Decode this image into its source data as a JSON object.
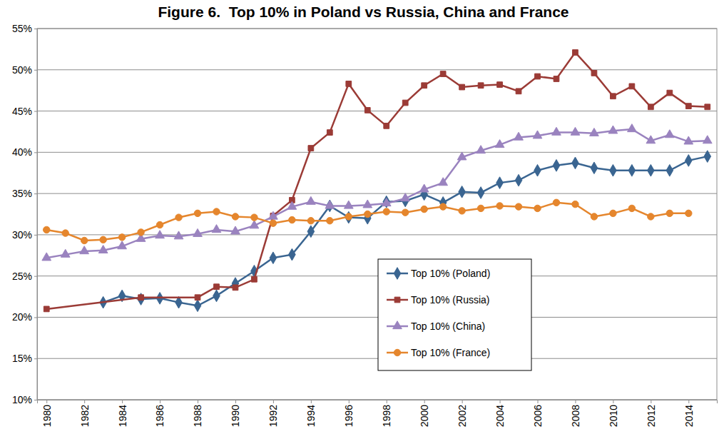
{
  "chart_data": {
    "type": "line",
    "title": "Figure 6.  Top 10% in Poland vs Russia, China and France",
    "xlim": [
      1979.5,
      2015.5
    ],
    "xticks": [
      1980,
      1982,
      1984,
      1986,
      1988,
      1990,
      1992,
      1994,
      1996,
      1998,
      2000,
      2002,
      2004,
      2006,
      2008,
      2010,
      2012,
      2014
    ],
    "ylim": [
      10,
      55
    ],
    "yticks": [
      {
        "value": 10,
        "label": "10%"
      },
      {
        "value": 15,
        "label": "15%"
      },
      {
        "value": 20,
        "label": "20%"
      },
      {
        "value": 25,
        "label": "25%"
      },
      {
        "value": 30,
        "label": "30%"
      },
      {
        "value": 35,
        "label": "35%"
      },
      {
        "value": 40,
        "label": "40%"
      },
      {
        "value": 45,
        "label": "45%"
      },
      {
        "value": 50,
        "label": "50%"
      },
      {
        "value": 55,
        "label": "55%"
      }
    ],
    "grid": true,
    "legend": "bottom",
    "series": [
      {
        "name": "Top 10% (Poland)",
        "color": "#3a6591",
        "marker": "diamond",
        "line_style": "solid",
        "x": [
          1983,
          1984,
          1985,
          1986,
          1987,
          1988,
          1989,
          1990,
          1991,
          1992,
          1993,
          1994,
          1995,
          1996,
          1997,
          1998,
          1999,
          2000,
          2001,
          2002,
          2003,
          2004,
          2005,
          2006,
          2007,
          2008,
          2009,
          2010,
          2011,
          2012,
          2013,
          2014,
          2015
        ],
        "values": [
          21.8,
          22.6,
          22.2,
          22.3,
          21.8,
          21.4,
          22.6,
          24.1,
          25.6,
          27.2,
          27.6,
          30.4,
          33.5,
          32.1,
          32.0,
          34.0,
          34.1,
          34.9,
          33.9,
          35.2,
          35.1,
          36.3,
          36.6,
          37.8,
          38.4,
          38.7,
          38.1,
          37.8,
          37.8,
          37.8,
          37.8,
          39.0,
          39.5
        ]
      },
      {
        "name": "Top 10% (Russia)",
        "color": "#9b3b36",
        "marker": "square",
        "line_style": "solid",
        "x": [
          1980,
          1985,
          1988,
          1989,
          1990,
          1991,
          1992,
          1993,
          1994,
          1995,
          1996,
          1997,
          1998,
          1999,
          2000,
          2001,
          2002,
          2003,
          2004,
          2005,
          2006,
          2007,
          2008,
          2009,
          2010,
          2011,
          2012,
          2013,
          2014,
          2015
        ],
        "values": [
          21.0,
          22.4,
          22.4,
          23.7,
          23.6,
          24.6,
          32.3,
          34.2,
          40.5,
          42.4,
          48.3,
          45.1,
          43.2,
          46.0,
          48.1,
          49.5,
          47.9,
          48.1,
          48.2,
          47.4,
          49.2,
          48.9,
          52.1,
          49.6,
          46.8,
          48.0,
          45.5,
          47.2,
          45.6,
          45.5
        ]
      },
      {
        "name": "Top 10% (China)",
        "color": "#9a83bf",
        "marker": "triangle",
        "line_style": "solid",
        "x": [
          1980,
          1981,
          1982,
          1983,
          1984,
          1985,
          1986,
          1987,
          1988,
          1989,
          1990,
          1991,
          1992,
          1993,
          1994,
          1995,
          1996,
          1997,
          1998,
          1999,
          2000,
          2001,
          2002,
          2003,
          2004,
          2005,
          2006,
          2007,
          2008,
          2009,
          2010,
          2011,
          2012,
          2013,
          2014,
          2015
        ],
        "values": [
          27.2,
          27.6,
          28.0,
          28.1,
          28.6,
          29.5,
          29.9,
          29.8,
          30.1,
          30.6,
          30.4,
          31.1,
          32.2,
          33.4,
          34.0,
          33.5,
          33.5,
          33.6,
          33.8,
          34.4,
          35.5,
          36.3,
          39.4,
          40.2,
          40.9,
          41.8,
          42.0,
          42.4,
          42.4,
          42.3,
          42.6,
          42.8,
          41.4,
          42.1,
          41.3,
          41.4
        ]
      },
      {
        "name": "Top 10% (France)",
        "color": "#e5862d",
        "marker": "circle",
        "line_style": "solid",
        "x": [
          1980,
          1981,
          1982,
          1983,
          1984,
          1985,
          1986,
          1987,
          1988,
          1989,
          1990,
          1991,
          1992,
          1993,
          1994,
          1995,
          1996,
          1997,
          1998,
          1999,
          2000,
          2001,
          2002,
          2003,
          2004,
          2005,
          2006,
          2007,
          2008,
          2009,
          2010,
          2011,
          2012,
          2013,
          2014
        ],
        "values": [
          30.6,
          30.2,
          29.3,
          29.4,
          29.7,
          30.3,
          31.2,
          32.1,
          32.6,
          32.8,
          32.2,
          32.1,
          31.4,
          31.8,
          31.7,
          31.7,
          32.2,
          32.5,
          32.8,
          32.7,
          33.1,
          33.4,
          32.9,
          33.2,
          33.5,
          33.4,
          33.2,
          33.9,
          33.7,
          32.2,
          32.6,
          33.2,
          32.2,
          32.6,
          32.6
        ]
      }
    ]
  }
}
